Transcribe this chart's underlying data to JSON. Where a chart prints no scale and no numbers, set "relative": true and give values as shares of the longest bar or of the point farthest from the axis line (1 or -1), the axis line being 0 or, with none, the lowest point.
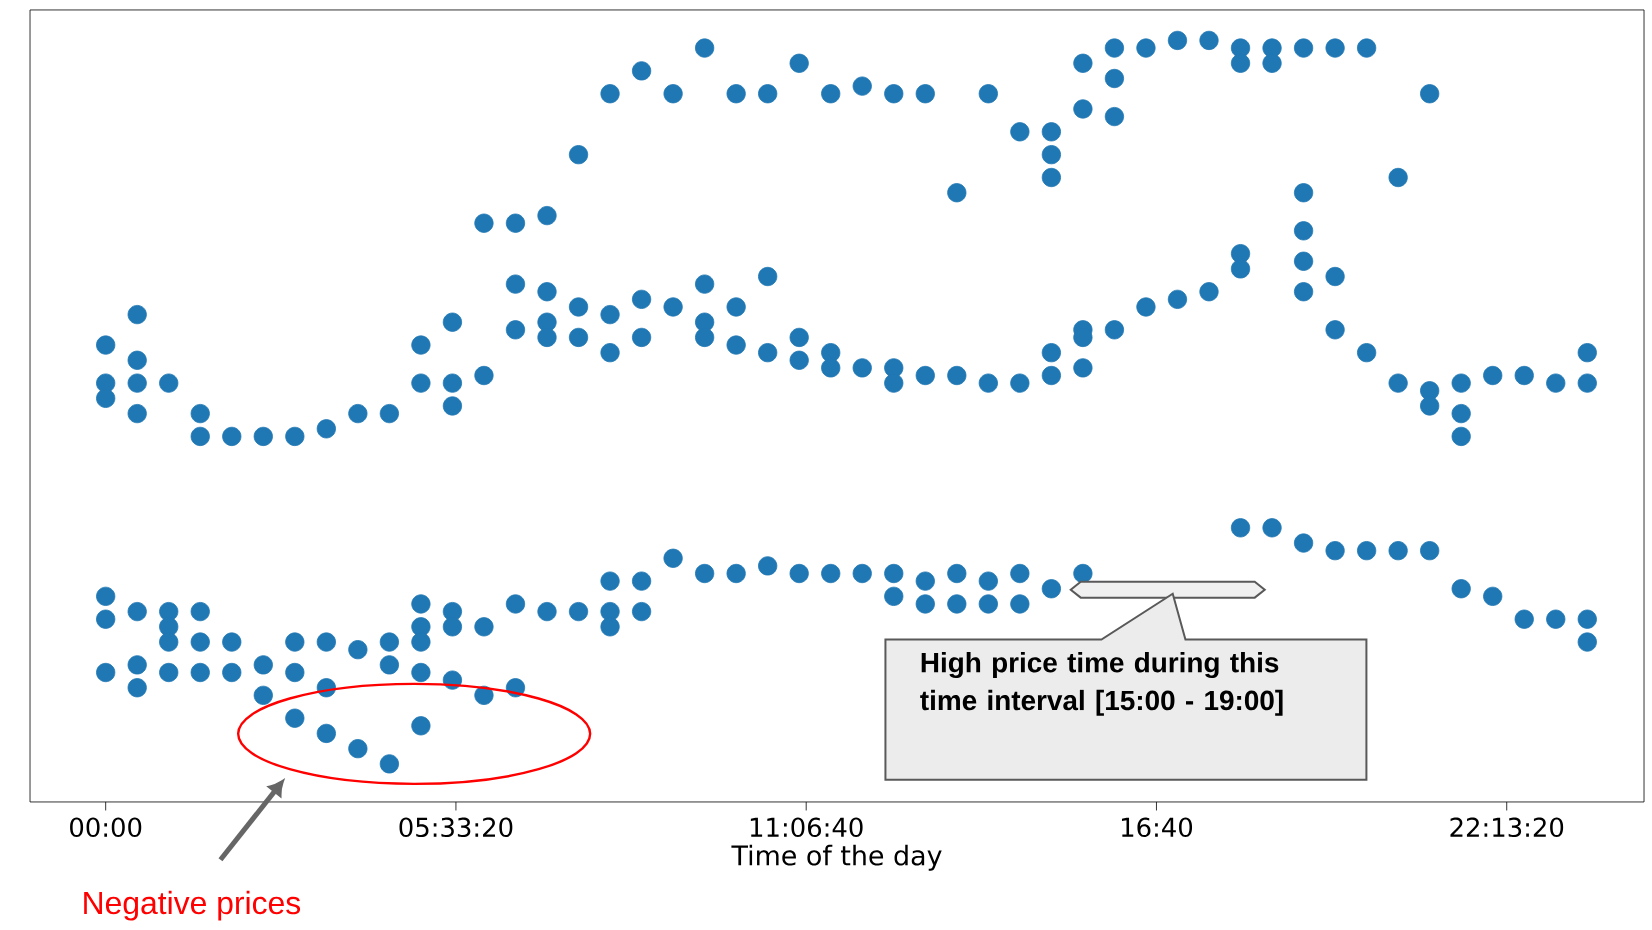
{
  "chart_data": {
    "type": "scatter",
    "relative": true,
    "xlabel": "Time of the day",
    "marker": "circle",
    "color": "#1f77b4",
    "xlim": [
      -1.2,
      24.4
    ],
    "xticks": [
      {
        "value": 0,
        "label": "00:00"
      },
      {
        "value": 5.5556,
        "label": "05:33:20"
      },
      {
        "value": 11.1111,
        "label": "11:06:40"
      },
      {
        "value": 16.6667,
        "label": "16:40"
      },
      {
        "value": 22.2222,
        "label": "22:13:20"
      }
    ],
    "x": [
      0,
      0,
      0,
      0,
      0,
      0,
      0.5,
      0.5,
      0.5,
      0.5,
      0.5,
      0.5,
      0.5,
      1,
      1,
      1,
      1,
      1,
      1.5,
      1.5,
      1.5,
      1.5,
      1.5,
      2,
      2,
      2,
      2.5,
      2.5,
      2.5,
      3,
      3,
      3,
      3,
      3.5,
      3.5,
      3.5,
      3.5,
      4,
      4,
      4,
      4.5,
      4.5,
      4.5,
      4.5,
      5,
      5,
      5,
      5,
      5,
      5,
      5,
      5.5,
      5.5,
      5.5,
      5.5,
      5.5,
      5.5,
      6,
      6,
      6,
      6,
      6.5,
      6.5,
      6.5,
      6.5,
      6.5,
      7,
      7,
      7,
      7,
      7,
      7.5,
      7.5,
      7.5,
      7.5,
      8,
      8,
      8,
      8,
      8,
      8,
      8.5,
      8.5,
      8.5,
      8.5,
      8.5,
      9,
      9,
      9,
      9.5,
      9.5,
      9.5,
      9.5,
      9.5,
      10,
      10,
      10,
      10,
      10.5,
      10.5,
      10.5,
      10.5,
      11,
      11,
      11,
      11,
      11.5,
      11.5,
      11.5,
      11.5,
      12,
      12,
      12,
      12.5,
      12.5,
      12.5,
      12.5,
      12.5,
      13,
      13,
      13,
      13,
      13.5,
      13.5,
      13.5,
      13.5,
      14,
      14,
      14,
      14,
      14.5,
      14.5,
      14.5,
      14.5,
      15,
      15,
      15,
      15,
      15,
      15,
      15.5,
      15.5,
      15.5,
      15.5,
      15.5,
      15.5,
      16,
      16,
      16,
      16,
      16.5,
      16.5,
      17,
      17,
      17.5,
      17.5,
      18,
      18,
      18,
      18,
      18,
      18.5,
      18.5,
      18.5,
      19,
      19,
      19,
      19,
      19,
      19,
      19.5,
      19.5,
      19.5,
      19.5,
      20,
      20,
      20,
      20.5,
      20.5,
      20.5,
      21,
      21,
      21,
      21,
      21.5,
      21.5,
      21.5,
      21.5,
      22,
      22,
      22.5,
      22.5,
      23,
      23,
      23.5,
      23.5,
      23.5,
      23.5
    ],
    "values": [
      0.6,
      0.55,
      0.53,
      0.27,
      0.24,
      0.17,
      0.64,
      0.58,
      0.55,
      0.51,
      0.25,
      0.18,
      0.15,
      0.55,
      0.25,
      0.23,
      0.21,
      0.17,
      0.51,
      0.48,
      0.25,
      0.21,
      0.17,
      0.48,
      0.21,
      0.17,
      0.48,
      0.18,
      0.14,
      0.48,
      0.21,
      0.17,
      0.11,
      0.49,
      0.21,
      0.15,
      0.09,
      0.51,
      0.2,
      0.07,
      0.51,
      0.21,
      0.18,
      0.05,
      0.6,
      0.55,
      0.26,
      0.23,
      0.21,
      0.17,
      0.1,
      0.63,
      0.55,
      0.52,
      0.25,
      0.23,
      0.16,
      0.76,
      0.56,
      0.23,
      0.14,
      0.76,
      0.68,
      0.62,
      0.26,
      0.15,
      0.77,
      0.67,
      0.63,
      0.61,
      0.25,
      0.85,
      0.65,
      0.61,
      0.25,
      0.93,
      0.64,
      0.59,
      0.29,
      0.25,
      0.23,
      0.96,
      0.66,
      0.61,
      0.29,
      0.25,
      0.93,
      0.65,
      0.32,
      0.99,
      0.68,
      0.63,
      0.61,
      0.3,
      0.93,
      0.65,
      0.6,
      0.3,
      0.93,
      0.69,
      0.59,
      0.31,
      0.97,
      0.61,
      0.58,
      0.3,
      0.93,
      0.59,
      0.57,
      0.3,
      0.94,
      0.57,
      0.3,
      0.93,
      0.57,
      0.55,
      0.3,
      0.27,
      0.93,
      0.56,
      0.29,
      0.26,
      0.8,
      0.56,
      0.3,
      0.26,
      0.93,
      0.55,
      0.29,
      0.26,
      0.88,
      0.55,
      0.3,
      0.26,
      0.88,
      0.85,
      0.82,
      0.59,
      0.56,
      0.28,
      0.97,
      0.91,
      0.62,
      0.61,
      0.57,
      0.3,
      0.99,
      0.95,
      0.9,
      0.62,
      0.99,
      0.65,
      1.0,
      0.66,
      1.0,
      0.67,
      0.99,
      0.97,
      0.72,
      0.7,
      0.36,
      0.99,
      0.97,
      0.36,
      0.99,
      0.8,
      0.75,
      0.71,
      0.67,
      0.34,
      0.99,
      0.69,
      0.62,
      0.33,
      0.99,
      0.59,
      0.33,
      0.82,
      0.55,
      0.33,
      0.93,
      0.54,
      0.52,
      0.33,
      0.55,
      0.51,
      0.48,
      0.28,
      0.56,
      0.27,
      0.56,
      0.24,
      0.55,
      0.24,
      0.59,
      0.55,
      0.24,
      0.21
    ],
    "annotations": [
      "Negative prices",
      "High price time during this time interval [15:00 - 19:00]"
    ]
  }
}
